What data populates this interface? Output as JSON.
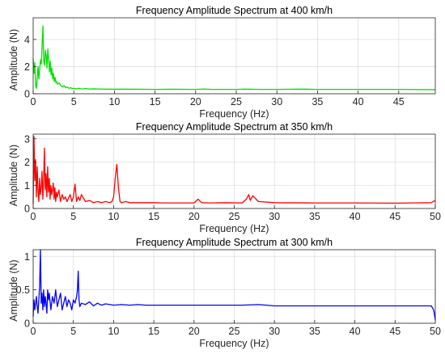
{
  "chart_data": [
    {
      "type": "line",
      "title": "Frequency Amplitude Spectrum at 400 km/h",
      "xlabel": "Frequency (Hz)",
      "ylabel": "Amplitude (N)",
      "xlim": [
        0,
        49.5
      ],
      "ylim": [
        0,
        5.6
      ],
      "xticks": [
        0,
        5,
        10,
        15,
        20,
        25,
        30,
        35,
        40,
        45
      ],
      "yticks": [
        0,
        2,
        4
      ],
      "grid": true,
      "series": [
        {
          "color": "#00e000",
          "x": [
            0,
            0.1,
            0.2,
            0.3,
            0.4,
            0.5,
            0.6,
            0.7,
            0.8,
            0.9,
            1.0,
            1.1,
            1.2,
            1.3,
            1.4,
            1.5,
            1.6,
            1.7,
            1.8,
            1.9,
            2.0,
            2.1,
            2.2,
            2.3,
            2.4,
            2.5,
            2.6,
            2.7,
            2.8,
            2.9,
            3.0,
            3.2,
            3.4,
            3.6,
            3.8,
            4.0,
            4.2,
            4.4,
            4.6,
            4.8,
            5.0,
            5.3,
            5.6,
            6.0,
            6.5,
            7.0,
            7.5,
            8.0,
            9.0,
            10.0,
            11.0,
            12.0,
            13.0,
            15.0,
            17.0,
            20.0,
            21.0,
            22.0,
            25.0,
            26.0,
            28.0,
            30.0,
            33.0,
            35.0,
            40.0,
            45.0,
            49.5
          ],
          "y": [
            2.6,
            1.5,
            2.3,
            0.6,
            0.4,
            1.2,
            2.0,
            1.1,
            1.8,
            2.5,
            2.2,
            3.6,
            5.0,
            2.4,
            2.1,
            3.2,
            2.8,
            1.9,
            3.3,
            2.6,
            1.6,
            2.4,
            1.4,
            1.9,
            1.1,
            1.5,
            0.9,
            1.2,
            0.8,
            0.9,
            0.7,
            0.8,
            0.6,
            0.5,
            0.6,
            0.45,
            0.5,
            0.4,
            0.45,
            0.38,
            0.4,
            0.36,
            0.4,
            0.35,
            0.38,
            0.34,
            0.36,
            0.35,
            0.34,
            0.33,
            0.34,
            0.33,
            0.33,
            0.32,
            0.33,
            0.32,
            0.35,
            0.32,
            0.32,
            0.34,
            0.32,
            0.32,
            0.34,
            0.32,
            0.32,
            0.32,
            0.3
          ]
        }
      ]
    },
    {
      "type": "line",
      "title": "Frequency Amplitude Spectrum at 350 km/h",
      "xlabel": "Frequency (Hz)",
      "ylabel": "Amplitude (N)",
      "xlim": [
        0,
        50
      ],
      "ylim": [
        0,
        3.2
      ],
      "xticks": [
        0,
        5,
        10,
        15,
        20,
        25,
        30,
        35,
        40,
        45,
        50
      ],
      "yticks": [
        0,
        1,
        2,
        3
      ],
      "grid": true,
      "series": [
        {
          "color": "#ff0000",
          "x": [
            0,
            0.1,
            0.2,
            0.3,
            0.4,
            0.5,
            0.6,
            0.7,
            0.8,
            0.9,
            1.0,
            1.1,
            1.2,
            1.3,
            1.4,
            1.5,
            1.6,
            1.7,
            1.8,
            1.9,
            2.0,
            2.1,
            2.2,
            2.3,
            2.4,
            2.5,
            2.6,
            2.7,
            2.8,
            2.9,
            3.0,
            3.2,
            3.4,
            3.6,
            3.8,
            4.0,
            4.2,
            4.4,
            4.6,
            4.8,
            5.0,
            5.2,
            5.4,
            5.6,
            5.8,
            6.0,
            6.5,
            7.0,
            7.5,
            8.0,
            8.5,
            9.0,
            9.5,
            9.8,
            10.0,
            10.2,
            10.4,
            10.6,
            10.8,
            11.0,
            11.5,
            12.0,
            13.0,
            14.0,
            15.0,
            16.0,
            18.0,
            20.0,
            20.5,
            20.8,
            21.0,
            22.0,
            24.0,
            26.0,
            26.5,
            26.8,
            27.0,
            27.3,
            28.0,
            30.0,
            35.0,
            40.0,
            45.0,
            49.5,
            50.0
          ],
          "y": [
            0.2,
            3.1,
            1.2,
            2.1,
            0.5,
            1.8,
            0.8,
            0.3,
            1.3,
            0.6,
            0.9,
            1.6,
            0.4,
            1.2,
            2.6,
            0.8,
            1.5,
            0.5,
            1.8,
            0.7,
            1.3,
            0.4,
            1.0,
            0.6,
            0.8,
            1.1,
            0.4,
            0.9,
            0.3,
            0.7,
            0.5,
            0.8,
            0.3,
            0.6,
            0.4,
            0.5,
            0.3,
            0.45,
            0.6,
            0.3,
            0.5,
            1.05,
            0.3,
            0.5,
            0.35,
            0.6,
            0.3,
            0.35,
            0.25,
            0.3,
            0.25,
            0.3,
            0.25,
            0.3,
            0.5,
            1.3,
            1.9,
            0.9,
            0.3,
            0.25,
            0.3,
            0.25,
            0.25,
            0.25,
            0.25,
            0.24,
            0.24,
            0.24,
            0.4,
            0.3,
            0.25,
            0.24,
            0.25,
            0.24,
            0.4,
            0.6,
            0.35,
            0.55,
            0.3,
            0.25,
            0.24,
            0.24,
            0.23,
            0.25,
            0.35
          ]
        }
      ]
    },
    {
      "type": "line",
      "title": "Frequency Amplitude Spectrum at 300 km/h",
      "xlabel": "Frequency (Hz)",
      "ylabel": "Amplitude (N)",
      "xlim": [
        0,
        50
      ],
      "ylim": [
        0,
        1.1
      ],
      "xticks": [
        0,
        5,
        10,
        15,
        20,
        25,
        30,
        35,
        40,
        45,
        50
      ],
      "yticks": [
        0,
        0.5,
        1
      ],
      "grid": true,
      "series": [
        {
          "color": "#0000ff",
          "x": [
            0,
            0.1,
            0.2,
            0.3,
            0.4,
            0.5,
            0.6,
            0.7,
            0.8,
            0.9,
            1.0,
            1.1,
            1.2,
            1.3,
            1.4,
            1.5,
            1.6,
            1.7,
            1.8,
            1.9,
            2.0,
            2.2,
            2.4,
            2.6,
            2.8,
            3.0,
            3.2,
            3.4,
            3.6,
            3.8,
            4.0,
            4.2,
            4.4,
            4.6,
            4.8,
            5.0,
            5.2,
            5.4,
            5.5,
            5.6,
            5.7,
            5.8,
            6.0,
            6.5,
            7.0,
            7.5,
            8.0,
            8.5,
            9.0,
            10.0,
            11.0,
            12.0,
            13.0,
            14.0,
            16.0,
            18.0,
            20.0,
            22.0,
            24.0,
            26.0,
            28.0,
            29.0,
            30.0,
            35.0,
            40.0,
            45.0,
            49.5,
            49.8,
            50.0
          ],
          "y": [
            0.1,
            0.35,
            0.2,
            0.3,
            0.4,
            0.25,
            0.15,
            0.35,
            0.55,
            1.1,
            0.3,
            0.45,
            0.2,
            0.5,
            0.25,
            0.4,
            0.3,
            0.15,
            0.5,
            0.35,
            0.45,
            0.2,
            0.4,
            0.3,
            0.5,
            0.25,
            0.35,
            0.45,
            0.2,
            0.3,
            0.4,
            0.25,
            0.35,
            0.3,
            0.2,
            0.35,
            0.3,
            0.4,
            0.5,
            0.78,
            0.35,
            0.25,
            0.3,
            0.28,
            0.32,
            0.26,
            0.3,
            0.27,
            0.29,
            0.27,
            0.28,
            0.27,
            0.28,
            0.27,
            0.27,
            0.27,
            0.27,
            0.27,
            0.27,
            0.27,
            0.28,
            0.27,
            0.26,
            0.26,
            0.26,
            0.26,
            0.26,
            0.2,
            0.05
          ]
        }
      ]
    }
  ]
}
